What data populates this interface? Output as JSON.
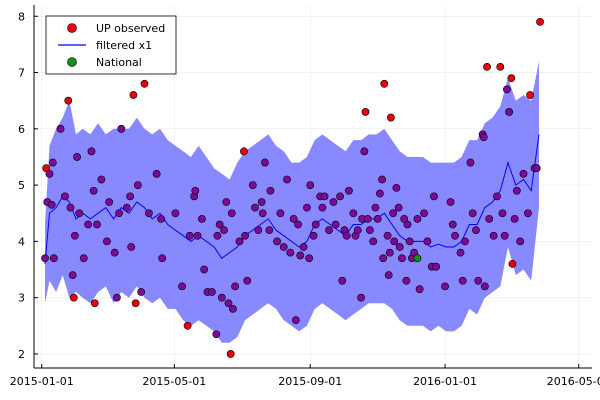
{
  "chart_data": {
    "type": "scatter",
    "title": "",
    "xlabel": "",
    "ylabel": "",
    "xlim": [
      "2014-12-25",
      "2016-05-13"
    ],
    "ylim": [
      1.75,
      8.2
    ],
    "x_ticks": [
      "2015-01-01",
      "2015-05-01",
      "2015-09-01",
      "2016-01-01",
      "2016-05-01"
    ],
    "y_ticks": [
      2,
      3,
      4,
      5,
      6,
      7,
      8
    ],
    "grid": true,
    "legend_position": "top-left",
    "legend": [
      {
        "label": "UP observed",
        "marker": "circle",
        "color": "#e8000b"
      },
      {
        "label": "filtered x1",
        "marker": "line",
        "color": "#0000ff"
      },
      {
        "label": "National",
        "marker": "circle",
        "color": "#1a8c1a"
      }
    ],
    "series": [
      {
        "name": "UP observed",
        "kind": "scatter",
        "color": "#e8000b",
        "points": [
          [
            "2015-01-04",
            3.7
          ],
          [
            "2015-01-05",
            5.3
          ],
          [
            "2015-01-06",
            4.7
          ],
          [
            "2015-01-08",
            5.2
          ],
          [
            "2015-01-10",
            4.65
          ],
          [
            "2015-01-11",
            5.4
          ],
          [
            "2015-01-12",
            3.7
          ],
          [
            "2015-01-18",
            6.0
          ],
          [
            "2015-01-22",
            4.8
          ],
          [
            "2015-01-25",
            6.5
          ],
          [
            "2015-01-27",
            4.6
          ],
          [
            "2015-01-29",
            3.4
          ],
          [
            "2015-01-30",
            3.0
          ],
          [
            "2015-01-31",
            4.1
          ],
          [
            "2015-02-02",
            5.5
          ],
          [
            "2015-02-04",
            4.5
          ],
          [
            "2015-02-08",
            3.7
          ],
          [
            "2015-02-12",
            4.3
          ],
          [
            "2015-02-15",
            5.6
          ],
          [
            "2015-02-17",
            4.9
          ],
          [
            "2015-02-18",
            2.9
          ],
          [
            "2015-02-20",
            4.3
          ],
          [
            "2015-02-24",
            5.1
          ],
          [
            "2015-03-01",
            4.0
          ],
          [
            "2015-03-03",
            4.7
          ],
          [
            "2015-03-08",
            3.8
          ],
          [
            "2015-03-10",
            3.0
          ],
          [
            "2015-03-12",
            4.5
          ],
          [
            "2015-03-14",
            6.0
          ],
          [
            "2015-03-19",
            4.6
          ],
          [
            "2015-03-22",
            4.8
          ],
          [
            "2015-03-23",
            3.9
          ],
          [
            "2015-03-25",
            6.6
          ],
          [
            "2015-03-27",
            2.9
          ],
          [
            "2015-03-29",
            5.0
          ],
          [
            "2015-04-01",
            3.1
          ],
          [
            "2015-04-04",
            6.8
          ],
          [
            "2015-04-08",
            4.5
          ],
          [
            "2015-04-15",
            5.2
          ],
          [
            "2015-04-19",
            4.4
          ],
          [
            "2015-04-20",
            3.7
          ],
          [
            "2015-05-02",
            4.5
          ],
          [
            "2015-05-08",
            3.2
          ],
          [
            "2015-05-13",
            2.5
          ],
          [
            "2015-05-15",
            4.1
          ],
          [
            "2015-05-19",
            4.8
          ],
          [
            "2015-05-20",
            4.9
          ],
          [
            "2015-05-22",
            4.1
          ],
          [
            "2015-05-26",
            4.4
          ],
          [
            "2015-05-28",
            3.5
          ],
          [
            "2015-05-31",
            3.1
          ],
          [
            "2015-06-04",
            3.1
          ],
          [
            "2015-06-08",
            2.35
          ],
          [
            "2015-06-09",
            4.1
          ],
          [
            "2015-06-11",
            4.3
          ],
          [
            "2015-06-13",
            3.0
          ],
          [
            "2015-06-15",
            4.2
          ],
          [
            "2015-06-17",
            4.7
          ],
          [
            "2015-06-19",
            2.9
          ],
          [
            "2015-06-21",
            2.0
          ],
          [
            "2015-06-22",
            4.5
          ],
          [
            "2015-06-23",
            2.8
          ],
          [
            "2015-06-25",
            3.2
          ],
          [
            "2015-06-29",
            4.0
          ],
          [
            "2015-07-03",
            5.6
          ],
          [
            "2015-07-04",
            4.1
          ],
          [
            "2015-07-06",
            3.3
          ],
          [
            "2015-07-11",
            5.0
          ],
          [
            "2015-07-13",
            4.6
          ],
          [
            "2015-07-16",
            4.2
          ],
          [
            "2015-07-19",
            4.7
          ],
          [
            "2015-07-20",
            4.5
          ],
          [
            "2015-07-22",
            5.4
          ],
          [
            "2015-07-26",
            4.2
          ],
          [
            "2015-07-27",
            4.9
          ],
          [
            "2015-08-02",
            4.0
          ],
          [
            "2015-08-05",
            4.5
          ],
          [
            "2015-08-08",
            3.9
          ],
          [
            "2015-08-11",
            5.1
          ],
          [
            "2015-08-14",
            3.8
          ],
          [
            "2015-08-17",
            4.4
          ],
          [
            "2015-08-19",
            2.6
          ],
          [
            "2015-08-21",
            4.3
          ],
          [
            "2015-08-23",
            3.75
          ],
          [
            "2015-08-26",
            3.9
          ],
          [
            "2015-08-29",
            4.6
          ],
          [
            "2015-08-31",
            3.7
          ],
          [
            "2015-09-01",
            5.0
          ],
          [
            "2015-09-04",
            4.1
          ],
          [
            "2015-09-06",
            4.3
          ],
          [
            "2015-09-10",
            4.8
          ],
          [
            "2015-09-12",
            4.6
          ],
          [
            "2015-09-14",
            4.8
          ],
          [
            "2015-09-18",
            4.2
          ],
          [
            "2015-09-22",
            4.7
          ],
          [
            "2015-09-24",
            4.3
          ],
          [
            "2015-09-28",
            4.8
          ],
          [
            "2015-09-30",
            3.3
          ],
          [
            "2015-10-02",
            4.2
          ],
          [
            "2015-10-04",
            4.1
          ],
          [
            "2015-10-06",
            4.9
          ],
          [
            "2015-10-10",
            4.5
          ],
          [
            "2015-10-12",
            4.1
          ],
          [
            "2015-10-14",
            4.2
          ],
          [
            "2015-10-17",
            3.0
          ],
          [
            "2015-10-18",
            4.4
          ],
          [
            "2015-10-20",
            5.6
          ],
          [
            "2015-10-21",
            6.3
          ],
          [
            "2015-10-23",
            4.4
          ],
          [
            "2015-10-25",
            4.2
          ],
          [
            "2015-10-28",
            4.0
          ],
          [
            "2015-10-30",
            4.6
          ],
          [
            "2015-11-01",
            4.4
          ],
          [
            "2015-11-03",
            4.85
          ],
          [
            "2015-11-05",
            5.1
          ],
          [
            "2015-11-06",
            3.7
          ],
          [
            "2015-11-07",
            6.8
          ],
          [
            "2015-11-10",
            4.1
          ],
          [
            "2015-11-11",
            3.4
          ],
          [
            "2015-11-12",
            3.8
          ],
          [
            "2015-11-13",
            6.2
          ],
          [
            "2015-11-15",
            4.5
          ],
          [
            "2015-11-16",
            4.0
          ],
          [
            "2015-11-18",
            4.95
          ],
          [
            "2015-11-20",
            4.6
          ],
          [
            "2015-11-21",
            3.9
          ],
          [
            "2015-11-23",
            3.7
          ],
          [
            "2015-11-25",
            4.4
          ],
          [
            "2015-11-27",
            3.3
          ],
          [
            "2015-11-28",
            4.3
          ],
          [
            "2015-11-30",
            4.0
          ],
          [
            "2015-12-02",
            3.7
          ],
          [
            "2015-12-04",
            3.8
          ],
          [
            "2015-12-07",
            4.4
          ],
          [
            "2015-12-09",
            3.15
          ],
          [
            "2015-12-13",
            4.5
          ],
          [
            "2015-12-16",
            4.0
          ],
          [
            "2015-12-20",
            3.55
          ],
          [
            "2015-12-22",
            4.8
          ],
          [
            "2015-12-24",
            3.55
          ],
          [
            "2016-01-01",
            3.2
          ],
          [
            "2016-01-06",
            4.7
          ],
          [
            "2016-01-08",
            4.3
          ],
          [
            "2016-01-10",
            4.1
          ],
          [
            "2016-01-15",
            3.8
          ],
          [
            "2016-01-17",
            3.3
          ],
          [
            "2016-01-19",
            4.0
          ],
          [
            "2016-01-24",
            5.4
          ],
          [
            "2016-01-26",
            4.5
          ],
          [
            "2016-01-29",
            4.2
          ],
          [
            "2016-01-31",
            3.3
          ],
          [
            "2016-02-04",
            5.9
          ],
          [
            "2016-02-05",
            5.85
          ],
          [
            "2016-02-06",
            3.2
          ],
          [
            "2016-02-08",
            7.1
          ],
          [
            "2016-02-10",
            4.4
          ],
          [
            "2016-02-14",
            4.1
          ],
          [
            "2016-02-17",
            4.8
          ],
          [
            "2016-02-20",
            7.1
          ],
          [
            "2016-02-22",
            4.5
          ],
          [
            "2016-02-24",
            4.1
          ],
          [
            "2016-02-26",
            6.7
          ],
          [
            "2016-02-28",
            6.3
          ],
          [
            "2016-03-01",
            6.9
          ],
          [
            "2016-03-02",
            3.6
          ],
          [
            "2016-03-04",
            4.4
          ],
          [
            "2016-03-06",
            4.9
          ],
          [
            "2016-03-09",
            4.0
          ],
          [
            "2016-03-12",
            5.2
          ],
          [
            "2016-03-16",
            4.5
          ],
          [
            "2016-03-18",
            6.6
          ],
          [
            "2016-03-22",
            5.3
          ],
          [
            "2016-03-24",
            5.3
          ],
          [
            "2016-03-27",
            7.9
          ]
        ]
      },
      {
        "name": "filtered x1",
        "kind": "line-with-band",
        "color": "#0000ff",
        "band_color": "#6b6bff",
        "points": [
          [
            "2015-01-04",
            3.6,
            2.9,
            4.3
          ],
          [
            "2015-01-08",
            4.5,
            3.3,
            5.7
          ],
          [
            "2015-01-14",
            4.6,
            3.1,
            6.0
          ],
          [
            "2015-01-20",
            4.8,
            3.4,
            6.2
          ],
          [
            "2015-01-26",
            4.7,
            3.0,
            6.5
          ],
          [
            "2015-02-01",
            4.4,
            3.1,
            5.9
          ],
          [
            "2015-02-07",
            4.5,
            3.0,
            6.0
          ],
          [
            "2015-02-14",
            4.4,
            2.9,
            5.9
          ],
          [
            "2015-02-21",
            4.5,
            3.1,
            6.1
          ],
          [
            "2015-02-28",
            4.6,
            3.2,
            5.9
          ],
          [
            "2015-03-07",
            4.4,
            2.9,
            6.0
          ],
          [
            "2015-03-14",
            4.6,
            3.1,
            6.0
          ],
          [
            "2015-03-21",
            4.5,
            3.0,
            6.0
          ],
          [
            "2015-03-28",
            4.7,
            3.2,
            6.2
          ],
          [
            "2015-04-04",
            4.6,
            3.0,
            6.0
          ],
          [
            "2015-04-11",
            4.4,
            2.9,
            5.9
          ],
          [
            "2015-04-18",
            4.5,
            3.0,
            6.0
          ],
          [
            "2015-04-25",
            4.3,
            2.8,
            5.8
          ],
          [
            "2015-05-02",
            4.2,
            2.8,
            5.7
          ],
          [
            "2015-05-09",
            4.1,
            2.6,
            5.6
          ],
          [
            "2015-05-16",
            4.0,
            2.5,
            5.5
          ],
          [
            "2015-05-23",
            4.1,
            2.6,
            5.7
          ],
          [
            "2015-05-30",
            4.0,
            2.5,
            5.5
          ],
          [
            "2015-06-06",
            3.9,
            2.4,
            5.3
          ],
          [
            "2015-06-13",
            3.7,
            2.2,
            5.2
          ],
          [
            "2015-06-20",
            3.8,
            2.2,
            5.1
          ],
          [
            "2015-06-27",
            3.9,
            2.3,
            5.4
          ],
          [
            "2015-07-04",
            4.1,
            2.6,
            5.6
          ],
          [
            "2015-07-11",
            4.2,
            2.7,
            5.7
          ],
          [
            "2015-07-18",
            4.3,
            2.8,
            5.8
          ],
          [
            "2015-07-25",
            4.4,
            2.9,
            5.9
          ],
          [
            "2015-08-01",
            4.2,
            2.8,
            5.7
          ],
          [
            "2015-08-08",
            4.1,
            2.6,
            5.6
          ],
          [
            "2015-08-15",
            4.0,
            2.5,
            5.4
          ],
          [
            "2015-08-22",
            3.9,
            2.4,
            5.4
          ],
          [
            "2015-08-29",
            4.0,
            2.5,
            5.5
          ],
          [
            "2015-09-05",
            4.3,
            2.8,
            5.8
          ],
          [
            "2015-09-12",
            4.4,
            2.9,
            5.9
          ],
          [
            "2015-09-19",
            4.3,
            2.8,
            5.8
          ],
          [
            "2015-09-26",
            4.2,
            2.7,
            5.7
          ],
          [
            "2015-10-03",
            4.1,
            2.6,
            5.6
          ],
          [
            "2015-10-10",
            4.3,
            2.7,
            5.8
          ],
          [
            "2015-10-17",
            4.3,
            2.8,
            5.8
          ],
          [
            "2015-10-24",
            4.4,
            2.9,
            5.9
          ],
          [
            "2015-10-31",
            4.4,
            2.9,
            5.9
          ],
          [
            "2015-11-07",
            4.5,
            2.9,
            6.0
          ],
          [
            "2015-11-14",
            4.3,
            2.8,
            5.8
          ],
          [
            "2015-11-21",
            4.1,
            2.6,
            5.6
          ],
          [
            "2015-11-28",
            4.0,
            2.5,
            5.5
          ],
          [
            "2015-12-05",
            4.0,
            2.5,
            5.5
          ],
          [
            "2015-12-12",
            4.0,
            2.5,
            5.5
          ],
          [
            "2015-12-19",
            3.9,
            2.4,
            5.4
          ],
          [
            "2015-12-26",
            3.95,
            2.5,
            5.4
          ],
          [
            "2016-01-02",
            3.9,
            2.4,
            5.4
          ],
          [
            "2016-01-09",
            3.9,
            2.4,
            5.4
          ],
          [
            "2016-01-16",
            4.0,
            2.5,
            5.5
          ],
          [
            "2016-01-23",
            4.3,
            2.8,
            5.8
          ],
          [
            "2016-01-30",
            4.3,
            2.7,
            5.8
          ],
          [
            "2016-02-06",
            4.6,
            3.0,
            6.1
          ],
          [
            "2016-02-13",
            4.7,
            3.1,
            6.2
          ],
          [
            "2016-02-20",
            4.9,
            3.2,
            6.4
          ],
          [
            "2016-02-27",
            5.4,
            3.9,
            6.9
          ],
          [
            "2016-03-05",
            5.0,
            3.4,
            6.5
          ],
          [
            "2016-03-12",
            5.1,
            3.5,
            6.6
          ],
          [
            "2016-03-19",
            4.9,
            3.3,
            6.5
          ],
          [
            "2016-03-26",
            5.9,
            4.6,
            7.2
          ]
        ]
      },
      {
        "name": "National",
        "kind": "scatter",
        "color": "#1a8c1a",
        "points": [
          [
            "2015-12-07",
            3.7
          ]
        ]
      }
    ]
  }
}
